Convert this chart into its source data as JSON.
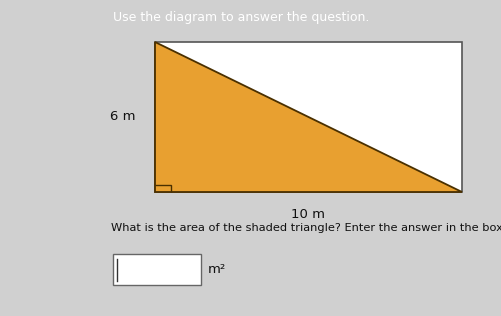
{
  "header_text": "Use the diagram to answer the question.",
  "header_bg": "#1f5f8b",
  "header_text_color": "#ffffff",
  "page_bg": "#d0d0d0",
  "content_bg": "#d8d8d8",
  "triangle_color": "#e8a030",
  "triangle_edge_color": "#4a3000",
  "rect_edge_color": "#555555",
  "rect_bg": "#ffffff",
  "label_left": "6 m",
  "label_bottom": "10 m",
  "question_text": "What is the area of the shaded triangle? Enter the answer in the box.",
  "answer_box_label": "m²",
  "question_text_color": "#111111",
  "divider_color": "#b0b8c0",
  "answer_bg": "#e8e8e8"
}
